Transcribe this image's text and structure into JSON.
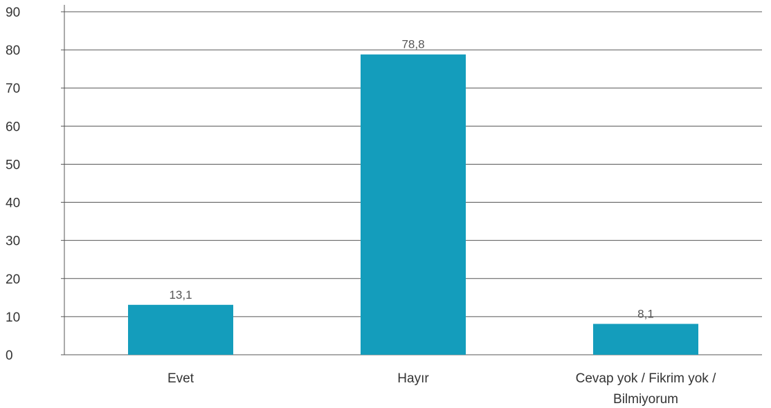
{
  "chart_data": {
    "type": "bar",
    "categories": [
      "Evet",
      "Hayır",
      "Cevap yok / Fikrim yok / Bilmiyorum"
    ],
    "category_label_lines": [
      [
        "Evet"
      ],
      [
        "Hayır"
      ],
      [
        "Cevap yok / Fikrim yok /",
        "Bilmiyorum"
      ]
    ],
    "values": [
      13.1,
      78.8,
      8.1
    ],
    "data_labels": [
      "13,1",
      "78,8",
      "8,1"
    ],
    "title": "",
    "xlabel": "",
    "ylabel": "",
    "ylim": [
      0,
      90
    ],
    "yticks": [
      0,
      10,
      20,
      30,
      40,
      50,
      60,
      70,
      80,
      90
    ],
    "grid": true,
    "legend": "none",
    "bar_color": "#149dbc",
    "grid_color": "#555555"
  }
}
